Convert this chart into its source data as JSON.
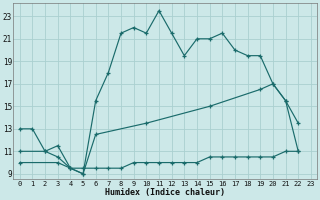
{
  "xlabel": "Humidex (Indice chaleur)",
  "bg_color": "#cce8e8",
  "line_color": "#1a6b6b",
  "grid_color": "#aad0d0",
  "xlim": [
    -0.5,
    23.5
  ],
  "ylim": [
    8.5,
    24.2
  ],
  "xticks": [
    0,
    1,
    2,
    3,
    4,
    5,
    6,
    7,
    8,
    9,
    10,
    11,
    12,
    13,
    14,
    15,
    16,
    17,
    18,
    19,
    20,
    21,
    22,
    23
  ],
  "yticks": [
    9,
    11,
    13,
    15,
    17,
    19,
    21,
    23
  ],
  "line1_x": [
    0,
    1,
    2,
    3,
    4,
    5,
    6,
    7,
    8,
    9,
    10,
    11,
    12,
    13,
    14,
    15,
    16,
    17,
    18,
    19,
    20,
    21,
    22
  ],
  "line1_y": [
    13,
    13,
    11,
    10.5,
    9.5,
    9.0,
    15.5,
    18.0,
    21.5,
    22.0,
    21.5,
    23.5,
    21.5,
    19.5,
    21.0,
    21.0,
    21.5,
    20.0,
    19.5,
    19.5,
    17.0,
    15.5,
    11.0
  ],
  "line2_x": [
    0,
    3,
    4,
    5,
    6,
    7,
    8,
    9,
    10,
    11,
    12,
    13,
    14,
    15,
    16,
    17,
    18,
    19,
    20,
    21,
    22
  ],
  "line2_y": [
    10.0,
    10.0,
    9.5,
    9.5,
    9.5,
    9.5,
    9.5,
    10.0,
    10.0,
    10.0,
    10.0,
    10.0,
    10.0,
    10.5,
    10.5,
    10.5,
    10.5,
    10.5,
    10.5,
    11.0,
    11.0
  ],
  "line3_x": [
    0,
    2,
    3,
    4,
    5,
    6,
    10,
    15,
    19,
    20,
    21,
    22
  ],
  "line3_y": [
    11.0,
    11.0,
    11.5,
    9.5,
    9.0,
    12.5,
    13.5,
    15.0,
    16.5,
    17.0,
    15.5,
    13.5
  ]
}
